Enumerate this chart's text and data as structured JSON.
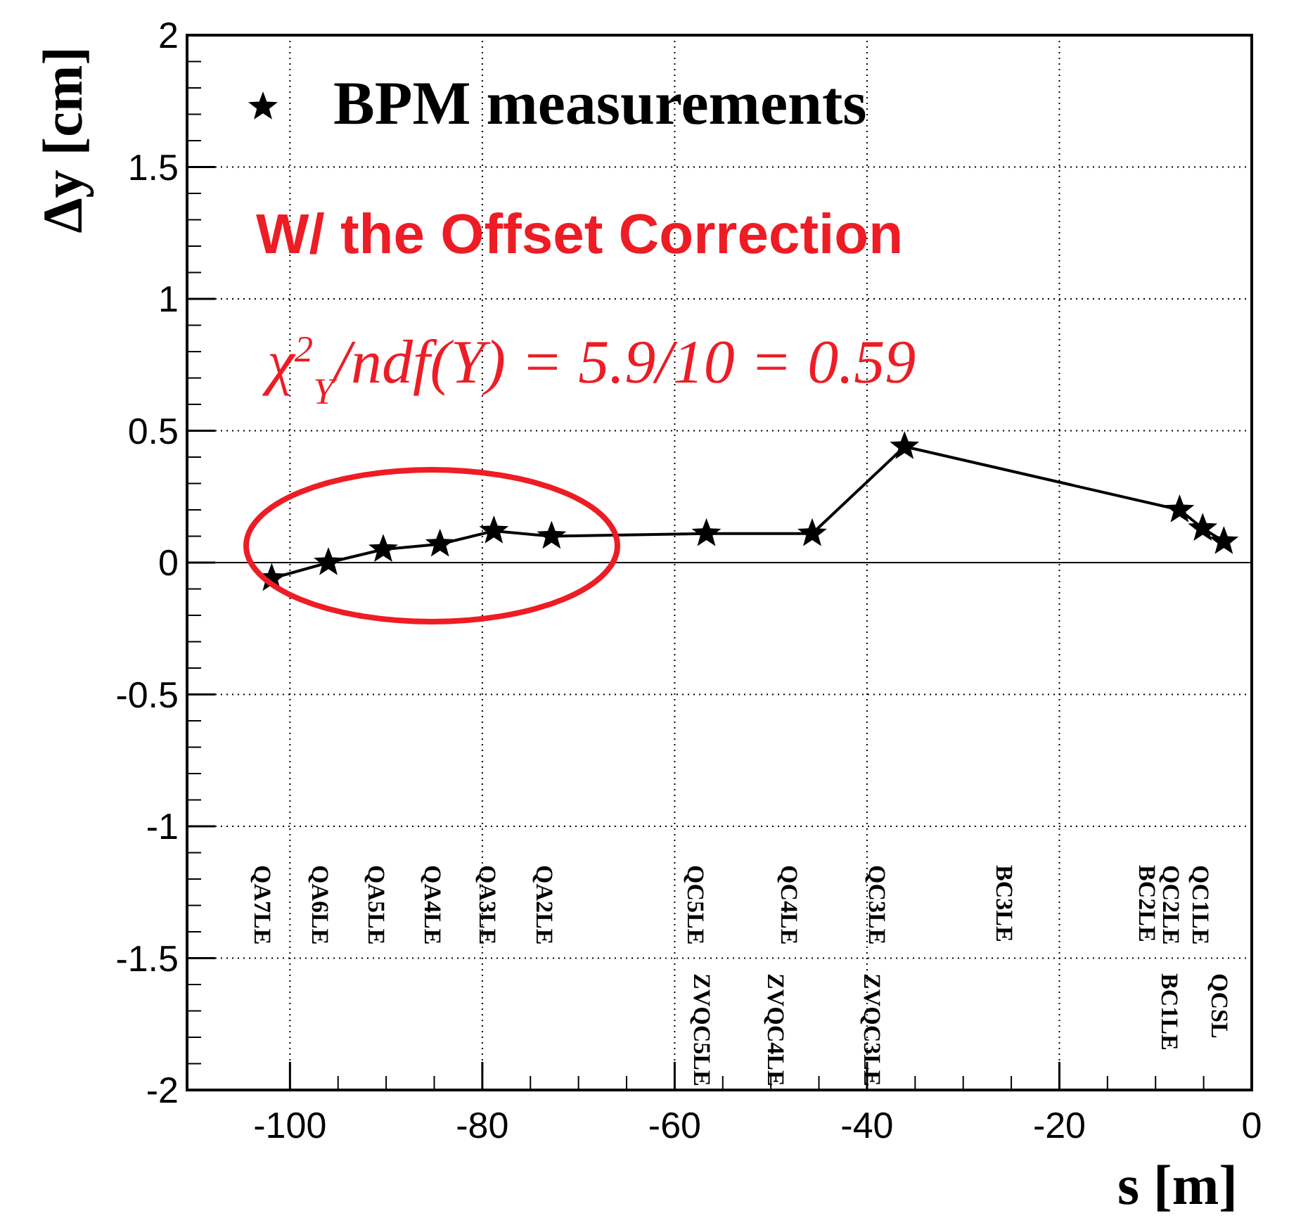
{
  "chart_data": {
    "type": "line",
    "xlabel": "s  [m]",
    "ylabel": "Δy  [cm]",
    "xlim": [
      -110.7,
      0
    ],
    "ylim": [
      -2,
      2
    ],
    "xticks": [
      -100,
      -80,
      -60,
      -40,
      -20,
      0
    ],
    "yticks": [
      -2,
      -1.5,
      -1,
      -0.5,
      0,
      0.5,
      1,
      1.5,
      2
    ],
    "grid": true,
    "legend": "top left",
    "marker": "star",
    "line_style": "solid",
    "ref_lines": [
      {
        "axis": "y",
        "value": 0,
        "color": "#000000"
      }
    ],
    "series": [
      {
        "name": "BPM measurements",
        "color": "#000000",
        "x": [
          -101.9,
          -96,
          -90.3,
          -84.4,
          -78.8,
          -72.8,
          -56.7,
          -45.7,
          -36.1,
          -7.5,
          -5.1,
          -2.9
        ],
        "values": [
          -0.06,
          0,
          0.05,
          0.07,
          0.12,
          0.1,
          0.11,
          0.11,
          0.44,
          0.2,
          0.13,
          0.08
        ]
      }
    ],
    "annotations": [
      "W/  the Offset Correction",
      "χ$^{2}$$_{Y}$/ndf(Y) = 5.9/10 = 0.59",
      "QA7LE",
      "QA6LE",
      "QA5LE",
      "QA4LE",
      "QA3LE",
      "QA2LE",
      "QC5LE",
      "QC4LE",
      "QC3LE",
      "BC3LE",
      "BC2LE",
      "QC2LE",
      "QC1LE",
      "ZVQC5LE",
      "ZVQC4LE",
      "ZVQC3LE",
      "BC1LE",
      "QCSL"
    ]
  }
}
